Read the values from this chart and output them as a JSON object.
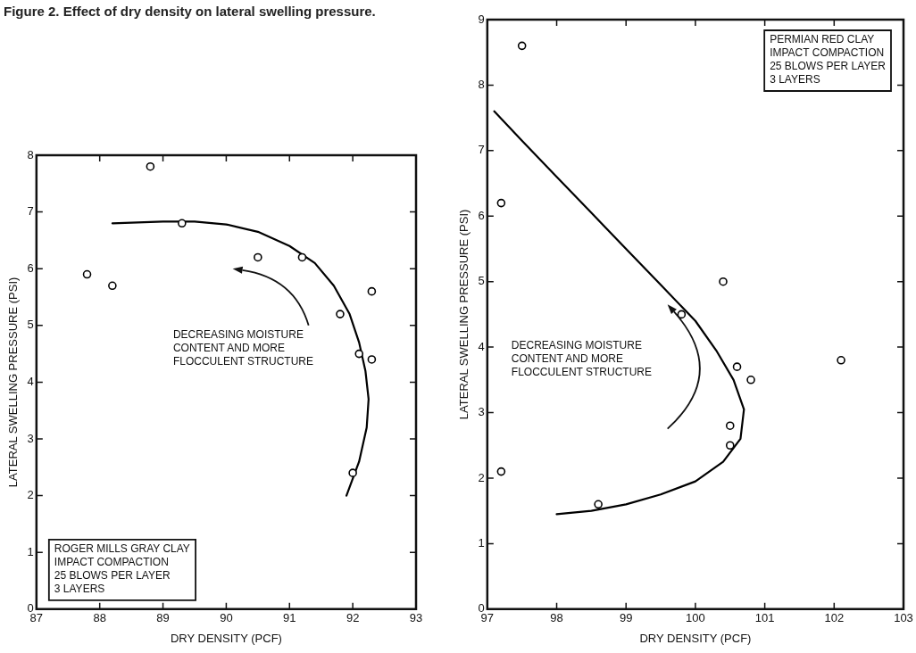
{
  "chart_data": [
    {
      "type": "scatter",
      "title": "Figure 2.  Effect of dry density on lateral swelling pressure.",
      "xlabel": "DRY DENSITY (PCF)",
      "ylabel": "LATERAL SWELLING PRESSURE (PSI)",
      "xlim": [
        87,
        93
      ],
      "xticks": [
        87,
        88,
        89,
        90,
        91,
        92,
        93
      ],
      "ylim": [
        0,
        8
      ],
      "yticks": [
        0,
        1,
        2,
        3,
        4,
        5,
        6,
        7,
        8
      ],
      "grid": false,
      "legend": false,
      "annotations": [
        "ROGER MILLS GRAY CLAY\nIMPACT COMPACTION\n25 BLOWS PER LAYER\n3 LAYERS",
        "DECREASING MOISTURE\nCONTENT AND MORE\nFLOCCULENT STRUCTURE"
      ],
      "series": [
        {
          "type": "scatter",
          "color": "#000000",
          "marker": "circle",
          "x": [
            87.8,
            88.2,
            88.8,
            89.3,
            90.5,
            91.2,
            91.8,
            92.1,
            92.3,
            92.3,
            92.0
          ],
          "values": [
            5.9,
            5.7,
            7.8,
            6.8,
            6.2,
            6.2,
            5.2,
            4.5,
            4.4,
            5.6,
            2.4
          ]
        },
        {
          "type": "line",
          "color": "#000000",
          "marker": "none",
          "x": [
            88.2,
            89,
            89.5,
            90,
            90.5,
            91,
            91.4,
            91.7,
            91.95,
            92.1,
            92.2,
            92.25,
            92.22,
            92.1,
            91.9
          ],
          "values": [
            6.8,
            6.83,
            6.83,
            6.78,
            6.65,
            6.4,
            6.1,
            5.7,
            5.2,
            4.7,
            4.2,
            3.7,
            3.2,
            2.6,
            2.0
          ]
        }
      ]
    },
    {
      "type": "scatter",
      "xlabel": "DRY DENSITY (PCF)",
      "ylabel": "LATERAL SWELLING PRESSURE (PSI)",
      "xlim": [
        97,
        103
      ],
      "xticks": [
        97,
        98,
        99,
        100,
        101,
        102,
        103
      ],
      "ylim": [
        0,
        9
      ],
      "yticks": [
        0,
        1,
        2,
        3,
        4,
        5,
        6,
        7,
        8,
        9
      ],
      "grid": false,
      "legend": false,
      "annotations": [
        "PERMIAN RED CLAY\nIMPACT COMPACTION\n25 BLOWS PER LAYER\n3 LAYERS",
        "DECREASING MOISTURE\nCONTENT AND MORE\nFLOCCULENT STRUCTURE"
      ],
      "series": [
        {
          "type": "scatter",
          "color": "#000000",
          "marker": "circle",
          "x": [
            97.5,
            97.2,
            97.2,
            98.6,
            99.8,
            100.4,
            100.6,
            100.8,
            100.5,
            100.5,
            102.1
          ],
          "values": [
            8.6,
            6.2,
            2.1,
            1.6,
            4.5,
            5.0,
            3.7,
            3.5,
            2.8,
            2.5,
            3.8
          ]
        },
        {
          "type": "line",
          "color": "#000000",
          "marker": "none",
          "x": [
            97.1,
            97.5,
            98,
            98.5,
            99,
            99.5,
            100,
            100.3,
            100.55,
            100.7,
            100.65,
            100.4,
            100,
            99.5,
            99,
            98.5,
            98
          ],
          "values": [
            7.6,
            7.15,
            6.6,
            6.05,
            5.5,
            4.95,
            4.4,
            3.95,
            3.5,
            3.05,
            2.6,
            2.25,
            1.95,
            1.75,
            1.6,
            1.5,
            1.45
          ]
        }
      ]
    }
  ]
}
